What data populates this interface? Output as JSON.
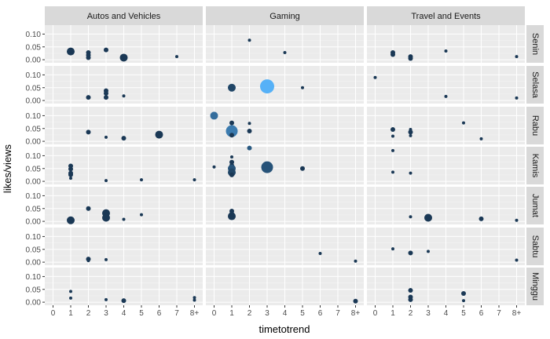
{
  "chart_data": {
    "type": "scatter",
    "xlabel": "timetotrend",
    "ylabel": "likes/views",
    "x_ticks": [
      "0",
      "1",
      "2",
      "3",
      "4",
      "5",
      "6",
      "7",
      "8+"
    ],
    "y_ticks": [
      "0.00",
      "0.05",
      "0.10"
    ],
    "ylim": [
      -0.012,
      0.135
    ],
    "columns": [
      "Autos and Vehicles",
      "Gaming",
      "Travel and Events"
    ],
    "rows": [
      "Senin",
      "Selasa",
      "Rabu",
      "Kamis",
      "Jumat",
      "Sabtu",
      "Minggu"
    ],
    "grid": true,
    "background_color": "#ebebeb",
    "strip_color": "#d9d9d9",
    "point_color_low": "#132b43",
    "point_color_high": "#56b1f7",
    "points": [
      {
        "col": 0,
        "row": 0,
        "x": "1",
        "y": 0.032,
        "size": 3,
        "color": 0.1
      },
      {
        "col": 0,
        "row": 0,
        "x": "2",
        "y": 0.028,
        "size": 2,
        "color": 0.1
      },
      {
        "col": 0,
        "row": 0,
        "x": "2",
        "y": 0.018,
        "size": 2,
        "color": 0.1
      },
      {
        "col": 0,
        "row": 0,
        "x": "2",
        "y": 0.008,
        "size": 2,
        "color": 0.1
      },
      {
        "col": 0,
        "row": 0,
        "x": "3",
        "y": 0.038,
        "size": 2,
        "color": 0.1
      },
      {
        "col": 0,
        "row": 0,
        "x": "4",
        "y": 0.008,
        "size": 3,
        "color": 0.1
      },
      {
        "col": 0,
        "row": 0,
        "x": "4",
        "y": 0.004,
        "size": 2,
        "color": 0.1
      },
      {
        "col": 0,
        "row": 0,
        "x": "7",
        "y": 0.012,
        "size": 1,
        "color": 0.1
      },
      {
        "col": 0,
        "row": 1,
        "x": "2",
        "y": 0.012,
        "size": 2,
        "color": 0.1
      },
      {
        "col": 0,
        "row": 1,
        "x": "3",
        "y": 0.038,
        "size": 2,
        "color": 0.1
      },
      {
        "col": 0,
        "row": 1,
        "x": "3",
        "y": 0.028,
        "size": 2,
        "color": 0.1
      },
      {
        "col": 0,
        "row": 1,
        "x": "3",
        "y": 0.012,
        "size": 2,
        "color": 0.1
      },
      {
        "col": 0,
        "row": 1,
        "x": "4",
        "y": 0.018,
        "size": 1,
        "color": 0.1
      },
      {
        "col": 0,
        "row": 2,
        "x": "2",
        "y": 0.036,
        "size": 2,
        "color": 0.1
      },
      {
        "col": 0,
        "row": 2,
        "x": "3",
        "y": 0.016,
        "size": 1,
        "color": 0.1
      },
      {
        "col": 0,
        "row": 2,
        "x": "4",
        "y": 0.012,
        "size": 2,
        "color": 0.1
      },
      {
        "col": 0,
        "row": 2,
        "x": "6",
        "y": 0.026,
        "size": 3,
        "color": 0.1
      },
      {
        "col": 0,
        "row": 3,
        "x": "1",
        "y": 0.06,
        "size": 2,
        "color": 0.1
      },
      {
        "col": 0,
        "row": 3,
        "x": "1",
        "y": 0.048,
        "size": 2,
        "color": 0.1
      },
      {
        "col": 0,
        "row": 3,
        "x": "1",
        "y": 0.032,
        "size": 2,
        "color": 0.1
      },
      {
        "col": 0,
        "row": 3,
        "x": "1",
        "y": 0.026,
        "size": 2,
        "color": 0.1
      },
      {
        "col": 0,
        "row": 3,
        "x": "1",
        "y": 0.012,
        "size": 1,
        "color": 0.1
      },
      {
        "col": 0,
        "row": 3,
        "x": "3",
        "y": 0.003,
        "size": 1,
        "color": 0.1
      },
      {
        "col": 0,
        "row": 3,
        "x": "5",
        "y": 0.006,
        "size": 1,
        "color": 0.1
      },
      {
        "col": 0,
        "row": 3,
        "x": "8+",
        "y": 0.006,
        "size": 1,
        "color": 0.1
      },
      {
        "col": 0,
        "row": 4,
        "x": "1",
        "y": 0.004,
        "size": 3,
        "color": 0.1
      },
      {
        "col": 0,
        "row": 4,
        "x": "2",
        "y": 0.05,
        "size": 2,
        "color": 0.1
      },
      {
        "col": 0,
        "row": 4,
        "x": "3",
        "y": 0.032,
        "size": 3,
        "color": 0.1
      },
      {
        "col": 0,
        "row": 4,
        "x": "3",
        "y": 0.014,
        "size": 3,
        "color": 0.1
      },
      {
        "col": 0,
        "row": 4,
        "x": "4",
        "y": 0.008,
        "size": 1,
        "color": 0.1
      },
      {
        "col": 0,
        "row": 4,
        "x": "5",
        "y": 0.026,
        "size": 1,
        "color": 0.1
      },
      {
        "col": 0,
        "row": 5,
        "x": "2",
        "y": 0.012,
        "size": 2,
        "color": 0.1
      },
      {
        "col": 0,
        "row": 5,
        "x": "2",
        "y": 0.006,
        "size": 1,
        "color": 0.1
      },
      {
        "col": 0,
        "row": 5,
        "x": "3",
        "y": 0.01,
        "size": 1,
        "color": 0.1
      },
      {
        "col": 0,
        "row": 6,
        "x": "1",
        "y": 0.042,
        "size": 1,
        "color": 0.1
      },
      {
        "col": 0,
        "row": 6,
        "x": "1",
        "y": 0.016,
        "size": 1,
        "color": 0.1
      },
      {
        "col": 0,
        "row": 6,
        "x": "3",
        "y": 0.01,
        "size": 1,
        "color": 0.1
      },
      {
        "col": 0,
        "row": 6,
        "x": "4",
        "y": 0.006,
        "size": 2,
        "color": 0.1
      },
      {
        "col": 0,
        "row": 6,
        "x": "8+",
        "y": 0.018,
        "size": 1,
        "color": 0.1
      },
      {
        "col": 0,
        "row": 6,
        "x": "8+",
        "y": 0.008,
        "size": 1,
        "color": 0.1
      },
      {
        "col": 1,
        "row": 0,
        "x": "2",
        "y": 0.076,
        "size": 1,
        "color": 0.1
      },
      {
        "col": 1,
        "row": 0,
        "x": "4",
        "y": 0.028,
        "size": 1,
        "color": 0.1
      },
      {
        "col": 1,
        "row": 1,
        "x": "1",
        "y": 0.05,
        "size": 3,
        "color": 0.2
      },
      {
        "col": 1,
        "row": 1,
        "x": "3",
        "y": 0.055,
        "size": 5,
        "color": 1.0
      },
      {
        "col": 1,
        "row": 1,
        "x": "5",
        "y": 0.05,
        "size": 1,
        "color": 0.1
      },
      {
        "col": 1,
        "row": 2,
        "x": "0",
        "y": 0.1,
        "size": 3,
        "color": 0.5
      },
      {
        "col": 1,
        "row": 2,
        "x": "1",
        "y": 0.072,
        "size": 2,
        "color": 0.1
      },
      {
        "col": 1,
        "row": 2,
        "x": "1",
        "y": 0.04,
        "size": 4,
        "color": 0.6
      },
      {
        "col": 1,
        "row": 2,
        "x": "1",
        "y": 0.024,
        "size": 2,
        "color": 0.1
      },
      {
        "col": 1,
        "row": 2,
        "x": "2",
        "y": 0.07,
        "size": 1,
        "color": 0.1
      },
      {
        "col": 1,
        "row": 2,
        "x": "2",
        "y": 0.04,
        "size": 2,
        "color": 0.1
      },
      {
        "col": 1,
        "row": 3,
        "x": "0",
        "y": 0.056,
        "size": 1,
        "color": 0.1
      },
      {
        "col": 1,
        "row": 3,
        "x": "1",
        "y": 0.095,
        "size": 1,
        "color": 0.1
      },
      {
        "col": 1,
        "row": 3,
        "x": "1",
        "y": 0.075,
        "size": 2,
        "color": 0.1
      },
      {
        "col": 1,
        "row": 3,
        "x": "1",
        "y": 0.062,
        "size": 2,
        "color": 0.1
      },
      {
        "col": 1,
        "row": 3,
        "x": "1",
        "y": 0.05,
        "size": 3,
        "color": 0.3
      },
      {
        "col": 1,
        "row": 3,
        "x": "1",
        "y": 0.035,
        "size": 3,
        "color": 0.2
      },
      {
        "col": 1,
        "row": 3,
        "x": "1",
        "y": 0.025,
        "size": 2,
        "color": 0.1
      },
      {
        "col": 1,
        "row": 3,
        "x": "2",
        "y": 0.13,
        "size": 2,
        "color": 0.35
      },
      {
        "col": 1,
        "row": 3,
        "x": "3",
        "y": 0.055,
        "size": 4,
        "color": 0.3
      },
      {
        "col": 1,
        "row": 3,
        "x": "5",
        "y": 0.05,
        "size": 2,
        "color": 0.1
      },
      {
        "col": 1,
        "row": 4,
        "x": "1",
        "y": 0.04,
        "size": 2,
        "color": 0.1
      },
      {
        "col": 1,
        "row": 4,
        "x": "1",
        "y": 0.03,
        "size": 2,
        "color": 0.1
      },
      {
        "col": 1,
        "row": 4,
        "x": "1",
        "y": 0.02,
        "size": 3,
        "color": 0.1
      },
      {
        "col": 1,
        "row": 5,
        "x": "6",
        "y": 0.034,
        "size": 1,
        "color": 0.1
      },
      {
        "col": 1,
        "row": 5,
        "x": "8+",
        "y": 0.004,
        "size": 1,
        "color": 0.1
      },
      {
        "col": 1,
        "row": 6,
        "x": "8+",
        "y": 0.004,
        "size": 2,
        "color": 0.1
      },
      {
        "col": 2,
        "row": 0,
        "x": "1",
        "y": 0.028,
        "size": 2,
        "color": 0.1
      },
      {
        "col": 2,
        "row": 0,
        "x": "1",
        "y": 0.02,
        "size": 2,
        "color": 0.1
      },
      {
        "col": 2,
        "row": 0,
        "x": "2",
        "y": 0.012,
        "size": 2,
        "color": 0.1
      },
      {
        "col": 2,
        "row": 0,
        "x": "2",
        "y": 0.005,
        "size": 2,
        "color": 0.1
      },
      {
        "col": 2,
        "row": 0,
        "x": "4",
        "y": 0.034,
        "size": 1,
        "color": 0.1
      },
      {
        "col": 2,
        "row": 0,
        "x": "8+",
        "y": 0.012,
        "size": 1,
        "color": 0.1
      },
      {
        "col": 2,
        "row": 1,
        "x": "0",
        "y": 0.09,
        "size": 1,
        "color": 0.1
      },
      {
        "col": 2,
        "row": 1,
        "x": "4",
        "y": 0.016,
        "size": 1,
        "color": 0.1
      },
      {
        "col": 2,
        "row": 1,
        "x": "8+",
        "y": 0.01,
        "size": 1,
        "color": 0.1
      },
      {
        "col": 2,
        "row": 2,
        "x": "1",
        "y": 0.046,
        "size": 2,
        "color": 0.1
      },
      {
        "col": 2,
        "row": 2,
        "x": "1",
        "y": 0.02,
        "size": 1,
        "color": 0.1
      },
      {
        "col": 2,
        "row": 2,
        "x": "2",
        "y": 0.046,
        "size": 1,
        "color": 0.1
      },
      {
        "col": 2,
        "row": 2,
        "x": "2",
        "y": 0.036,
        "size": 2,
        "color": 0.1
      },
      {
        "col": 2,
        "row": 2,
        "x": "2",
        "y": 0.022,
        "size": 1,
        "color": 0.1
      },
      {
        "col": 2,
        "row": 2,
        "x": "5",
        "y": 0.072,
        "size": 1,
        "color": 0.1
      },
      {
        "col": 2,
        "row": 2,
        "x": "6",
        "y": 0.01,
        "size": 1,
        "color": 0.1
      },
      {
        "col": 2,
        "row": 3,
        "x": "1",
        "y": 0.12,
        "size": 1,
        "color": 0.1
      },
      {
        "col": 2,
        "row": 3,
        "x": "1",
        "y": 0.036,
        "size": 1,
        "color": 0.1
      },
      {
        "col": 2,
        "row": 3,
        "x": "2",
        "y": 0.032,
        "size": 1,
        "color": 0.1
      },
      {
        "col": 2,
        "row": 4,
        "x": "2",
        "y": 0.018,
        "size": 1,
        "color": 0.1
      },
      {
        "col": 2,
        "row": 4,
        "x": "3",
        "y": 0.014,
        "size": 3,
        "color": 0.1
      },
      {
        "col": 2,
        "row": 4,
        "x": "6",
        "y": 0.01,
        "size": 2,
        "color": 0.1
      },
      {
        "col": 2,
        "row": 4,
        "x": "8+",
        "y": 0.004,
        "size": 1,
        "color": 0.1
      },
      {
        "col": 2,
        "row": 5,
        "x": "1",
        "y": 0.052,
        "size": 1,
        "color": 0.1
      },
      {
        "col": 2,
        "row": 5,
        "x": "2",
        "y": 0.036,
        "size": 2,
        "color": 0.1
      },
      {
        "col": 2,
        "row": 5,
        "x": "3",
        "y": 0.042,
        "size": 1,
        "color": 0.1
      },
      {
        "col": 2,
        "row": 5,
        "x": "8+",
        "y": 0.008,
        "size": 1,
        "color": 0.1
      },
      {
        "col": 2,
        "row": 6,
        "x": "2",
        "y": 0.046,
        "size": 2,
        "color": 0.1
      },
      {
        "col": 2,
        "row": 6,
        "x": "2",
        "y": 0.02,
        "size": 2,
        "color": 0.1
      },
      {
        "col": 2,
        "row": 6,
        "x": "2",
        "y": 0.01,
        "size": 2,
        "color": 0.1
      },
      {
        "col": 2,
        "row": 6,
        "x": "5",
        "y": 0.034,
        "size": 2,
        "color": 0.1
      },
      {
        "col": 2,
        "row": 6,
        "x": "5",
        "y": 0.006,
        "size": 1,
        "color": 0.1
      }
    ]
  }
}
